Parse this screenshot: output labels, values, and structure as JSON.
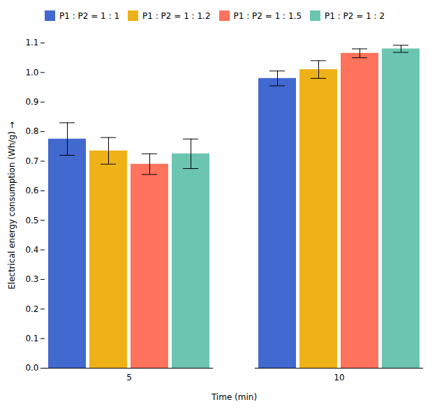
{
  "chart_data": {
    "type": "bar",
    "xlabel": "Time (min)",
    "ylabel": "Electrical energy consumption (Wh/g)",
    "categories": [
      "5",
      "10"
    ],
    "series": [
      {
        "name": "P1 : P2 = 1 : 1",
        "values": [
          0.775,
          0.98
        ],
        "errors": [
          0.055,
          0.025
        ]
      },
      {
        "name": "P1 : P2 = 1 : 1.2",
        "values": [
          0.735,
          1.01
        ],
        "errors": [
          0.045,
          0.03
        ]
      },
      {
        "name": "P1 : P2 = 1 : 1.5",
        "values": [
          0.69,
          1.065
        ],
        "errors": [
          0.035,
          0.015
        ]
      },
      {
        "name": "P1 : P2 = 1 : 2",
        "values": [
          0.725,
          1.08
        ],
        "errors": [
          0.05,
          0.012
        ]
      }
    ],
    "ylim": [
      0.0,
      1.1
    ],
    "yticks": [
      {
        "value": 0.0,
        "label": "0.0"
      },
      0.1,
      0.2,
      0.3,
      0.4,
      0.5,
      0.6,
      0.7,
      0.8,
      0.9,
      {
        "value": 1.0,
        "label": "1.0"
      },
      1.1
    ],
    "grid": false,
    "legend": "upper left"
  }
}
